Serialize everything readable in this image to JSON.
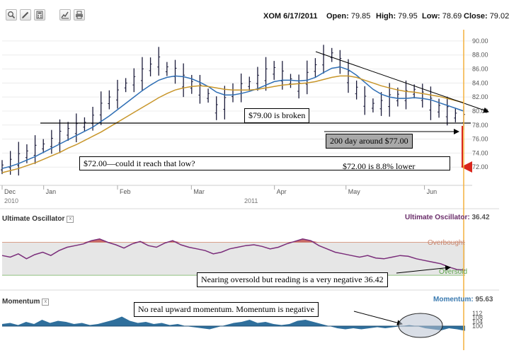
{
  "toolbar": {
    "icons": [
      "zoom-icon",
      "pencil-icon",
      "calculator-icon",
      "chart-icon",
      "print-icon"
    ]
  },
  "header": {
    "symbol_date": "XOM 6/17/2011",
    "open_label": "Open:",
    "open_value": "79.85",
    "high_label": "High:",
    "high_value": "79.95",
    "low_label": "Low:",
    "low_value": "78.69",
    "close_label": "Close:",
    "close_value": "79.02"
  },
  "annotations": {
    "broken": "$79.00 is broken",
    "ma200": "200 day around $77.00",
    "low72": "$72.00—could it reach that low?",
    "lower": "$72.00 is 8.8% lower",
    "oversold_note": "Nearing oversold but reading is a very negative 36.42",
    "momentum_note": "No real upward momentum. Momentum is negative"
  },
  "uo_panel": {
    "title": "Ultimate Oscillator",
    "readout_label": "Ultimate Oscillator:",
    "readout_value": "36.42",
    "overbought_label": "Overbought",
    "oversold_label": "Oversold"
  },
  "mom_panel": {
    "title": "Momentum",
    "readout_label": "Momentum:",
    "readout_value": "95.63",
    "ticks": [
      "112",
      "108",
      "104",
      "100"
    ]
  },
  "colors": {
    "price": "#1b1b3a",
    "ma_fast": "#2f6fb5",
    "ma_slow": "#c8962a",
    "uo_line": "#7a2d7a",
    "uo_fill": "#c0504d",
    "mom_fill": "#2f6f9c",
    "cursor": "#f4b13e",
    "arrow_red": "#d9261c"
  },
  "chart_data": [
    {
      "type": "line",
      "ylim": [
        70,
        91
      ],
      "yticks": [
        72,
        74,
        76,
        78,
        80,
        82,
        84,
        86,
        88,
        90
      ],
      "ytick_labels": [
        "72.00",
        "74.00",
        "76.00",
        "78.00",
        "80.00",
        "82.00",
        "84.00",
        "86.00",
        "88.00",
        "90.00"
      ],
      "xtick_labels": [
        "Dec",
        "Jan",
        "Feb",
        "Mar",
        "Apr",
        "May",
        "Jun"
      ],
      "xtick_fractions": [
        0.0,
        0.09,
        0.25,
        0.41,
        0.59,
        0.745,
        0.915
      ],
      "year_labels": [
        "2010",
        "2011"
      ],
      "year_fractions": [
        0.0,
        0.52
      ],
      "series": [
        {
          "values": [
            72.0,
            72.6,
            73.2,
            73.9,
            74.5,
            75.0,
            75.6,
            76.4,
            77.1,
            77.6,
            78.1,
            78.9,
            80.4,
            81.6,
            82.4,
            83.7,
            84.4,
            85.3,
            86.3,
            87.1,
            86.0,
            85.6,
            84.4,
            83.8,
            83.1,
            82.2,
            80.4,
            81.2,
            82.6,
            83.3,
            83.9,
            84.6,
            85.3,
            85.8,
            85.1,
            84.3,
            83.5,
            84.8,
            86.2,
            87.4,
            88.0,
            87.0,
            85.0,
            83.0,
            81.5,
            80.8,
            81.0,
            81.6,
            82.0,
            82.3,
            82.8,
            82.2,
            81.1,
            80.4,
            80.0,
            79.4,
            79.0
          ]
        },
        {
          "values": [
            71.8,
            72.1,
            72.5,
            73.0,
            73.5,
            74.1,
            74.7,
            75.3,
            75.9,
            76.5,
            77.1,
            77.7,
            78.5,
            79.3,
            80.2,
            81.1,
            82.0,
            82.9,
            83.7,
            84.4,
            84.8,
            85.0,
            84.9,
            84.6,
            84.1,
            83.5,
            82.7,
            82.3,
            82.3,
            82.5,
            82.8,
            83.2,
            83.7,
            84.2,
            84.4,
            84.4,
            84.3,
            84.4,
            84.8,
            85.5,
            86.1,
            86.3,
            85.9,
            85.1,
            84.1,
            83.1,
            82.4,
            82.0,
            81.8,
            81.8,
            81.9,
            81.8,
            81.6,
            81.2,
            80.8,
            80.4,
            80.0
          ]
        },
        {
          "values": [
            71.2,
            71.5,
            71.8,
            72.2,
            72.6,
            73.1,
            73.6,
            74.1,
            74.7,
            75.2,
            75.8,
            76.4,
            77.0,
            77.7,
            78.4,
            79.1,
            79.8,
            80.5,
            81.2,
            81.9,
            82.5,
            83.0,
            83.3,
            83.5,
            83.6,
            83.5,
            83.3,
            83.1,
            83.0,
            83.0,
            83.0,
            83.1,
            83.3,
            83.5,
            83.7,
            83.8,
            83.9,
            84.0,
            84.2,
            84.5,
            84.8,
            85.0,
            85.0,
            84.8,
            84.4,
            84.0,
            83.6,
            83.3,
            83.0,
            82.8,
            82.7,
            82.5,
            82.3,
            82.1,
            81.8,
            81.5,
            81.2
          ]
        }
      ]
    },
    {
      "type": "area",
      "title": "Ultimate Oscillator",
      "ylim": [
        25,
        85
      ],
      "overbought": 70,
      "oversold": 30,
      "values": [
        54,
        52,
        56,
        50,
        55,
        58,
        54,
        60,
        64,
        66,
        68,
        72,
        74,
        70,
        67,
        63,
        68,
        71,
        66,
        64,
        69,
        72,
        67,
        64,
        62,
        60,
        56,
        58,
        62,
        64,
        66,
        67,
        65,
        62,
        64,
        68,
        71,
        74,
        72,
        66,
        62,
        58,
        56,
        54,
        52,
        54,
        51,
        50,
        52,
        54,
        53,
        50,
        48,
        46,
        44,
        40,
        37,
        36.42
      ]
    },
    {
      "type": "area",
      "title": "Momentum",
      "ylim": [
        96,
        114
      ],
      "baseline": 100,
      "values": [
        102,
        103,
        101,
        104,
        102,
        106,
        103,
        105,
        104,
        102,
        103,
        101,
        102,
        104,
        106,
        109,
        105,
        103,
        104,
        102,
        103,
        101,
        102,
        100,
        99,
        98,
        97,
        99,
        101,
        103,
        104,
        106,
        103,
        104,
        102,
        101,
        102,
        105,
        106,
        104,
        102,
        100,
        98,
        97,
        98,
        97,
        98,
        99,
        98,
        99,
        100,
        101,
        100,
        98,
        97,
        96,
        98,
        97,
        95.63
      ]
    }
  ]
}
